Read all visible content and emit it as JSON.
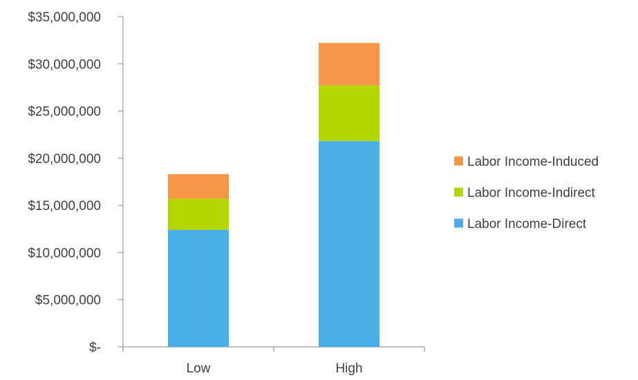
{
  "chart_data": {
    "type": "bar",
    "stacked": true,
    "title": "",
    "xlabel": "",
    "ylabel": "",
    "categories": [
      "Low",
      "High"
    ],
    "series": [
      {
        "name": "Labor Income-Direct",
        "values": [
          12400000,
          21800000
        ],
        "color": "#4aaee8"
      },
      {
        "name": "Labor Income-Indirect",
        "values": [
          3300000,
          5900000
        ],
        "color": "#b5d600"
      },
      {
        "name": "Labor Income-Induced",
        "values": [
          2600000,
          4500000
        ],
        "color": "#f79646"
      }
    ],
    "ylim": [
      0,
      35000000
    ],
    "yticks": [
      0,
      5000000,
      10000000,
      15000000,
      20000000,
      25000000,
      30000000,
      35000000
    ],
    "ytick_labels": [
      "$-",
      "$5,000,000",
      "$10,000,000",
      "$15,000,000",
      "$20,000,000",
      "$25,000,000",
      "$30,000,000",
      "$35,000,000"
    ],
    "legend": {
      "position": "right",
      "order": [
        "Labor Income-Induced",
        "Labor Income-Indirect",
        "Labor Income-Direct"
      ]
    },
    "grid": false,
    "axis_color": "#868686"
  }
}
